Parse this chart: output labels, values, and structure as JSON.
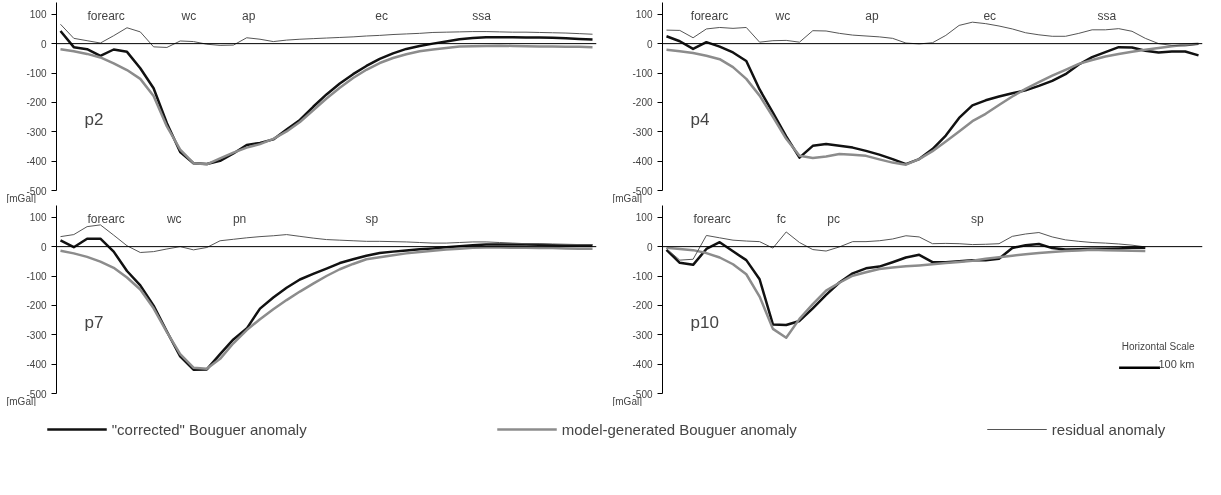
{
  "chart_data": [
    {
      "type": "line",
      "title": "p2",
      "ylabel": "[mGal]",
      "categories": [
        null,
        null,
        null,
        null,
        null,
        null,
        null,
        null,
        null,
        null,
        null,
        null,
        null,
        null,
        null,
        null,
        null,
        null,
        null,
        null,
        null,
        null,
        null,
        null,
        null,
        null,
        null,
        null,
        null,
        null,
        null,
        null,
        null,
        null,
        null,
        null,
        null,
        null,
        null,
        null,
        null
      ],
      "ylim": [
        -500,
        140
      ],
      "yticks": [
        100,
        0,
        -100,
        -200,
        -300,
        -400,
        -500
      ],
      "legend": "bottom",
      "ref_lines": [
        {
          "axis": "y",
          "value": 0,
          "color": "#000000"
        }
      ],
      "annotations": [
        "forearc",
        "wc",
        "ap",
        "ec",
        "ssa"
      ],
      "series": [
        {
          "name": "\"corrected\" Bouguer anomaly",
          "color": "#111111",
          "values": [
            43,
            -12,
            -19,
            -42,
            -20,
            -28,
            -84,
            -152,
            -271,
            -369,
            -407,
            -410,
            -399,
            -374,
            -345,
            -338,
            -326,
            -292,
            -260,
            -215,
            -173,
            -136,
            -104,
            -76,
            -52,
            -33,
            -18,
            -8,
            0,
            7,
            15,
            19,
            22,
            22,
            22,
            21,
            21,
            20,
            18,
            16,
            14
          ]
        },
        {
          "name": "model-generated Bouguer anomaly",
          "color": "#8c8c8c",
          "values": [
            -19,
            -26,
            -35,
            -47,
            -67,
            -90,
            -120,
            -178,
            -282,
            -361,
            -407,
            -411,
            -391,
            -371,
            -354,
            -342,
            -324,
            -299,
            -267,
            -227,
            -187,
            -150,
            -117,
            -89,
            -66,
            -49,
            -36,
            -26,
            -20,
            -15,
            -10,
            -9,
            -8,
            -7,
            -8,
            -9,
            -10,
            -10,
            -11,
            -11,
            -12
          ]
        },
        {
          "name": "residual anomaly",
          "color": "#555555",
          "values": [
            66,
            18,
            10,
            2,
            27,
            54,
            40,
            -11,
            -13,
            9,
            7,
            -2,
            -6,
            -5,
            20,
            15,
            7,
            12,
            15,
            17,
            19,
            21,
            23,
            26,
            28,
            31,
            33,
            35,
            38,
            39,
            40,
            41,
            41,
            40,
            39,
            39,
            38,
            37,
            36,
            34,
            32
          ]
        }
      ]
    },
    {
      "type": "line",
      "title": "p4",
      "ylabel": "[mGal]",
      "categories": [
        null,
        null,
        null,
        null,
        null,
        null,
        null,
        null,
        null,
        null,
        null,
        null,
        null,
        null,
        null,
        null,
        null,
        null,
        null,
        null,
        null,
        null,
        null,
        null,
        null,
        null,
        null,
        null,
        null,
        null,
        null,
        null,
        null,
        null,
        null,
        null,
        null,
        null,
        null,
        null,
        null
      ],
      "ylim": [
        -500,
        140
      ],
      "yticks": [
        100,
        0,
        -100,
        -200,
        -300,
        -400,
        -500
      ],
      "ref_lines": [
        {
          "axis": "y",
          "value": 0,
          "color": "#000000"
        }
      ],
      "annotations": [
        "forearc",
        "wc",
        "ap",
        "ec",
        "ssa"
      ],
      "series": [
        {
          "color": "#111111",
          "values": [
            25,
            8,
            -18,
            5,
            -10,
            -30,
            -59,
            -156,
            -235,
            -316,
            -388,
            -348,
            -342,
            -348,
            -354,
            -365,
            -378,
            -393,
            -410,
            -393,
            -359,
            -313,
            -253,
            -210,
            -193,
            -180,
            -169,
            -159,
            -144,
            -127,
            -104,
            -71,
            -46,
            -29,
            -12,
            -13,
            -24,
            -30,
            -27,
            -27,
            -40
          ]
        },
        {
          "color": "#8c8c8c",
          "values": [
            -21,
            -26,
            -32,
            -41,
            -53,
            -80,
            -120,
            -177,
            -249,
            -324,
            -382,
            -389,
            -384,
            -376,
            -378,
            -382,
            -394,
            -405,
            -412,
            -393,
            -366,
            -333,
            -299,
            -264,
            -239,
            -209,
            -180,
            -154,
            -131,
            -109,
            -89,
            -69,
            -56,
            -44,
            -35,
            -28,
            -21,
            -15,
            -9,
            -4,
            0
          ]
        },
        {
          "color": "#555555",
          "values": [
            46,
            45,
            20,
            50,
            55,
            52,
            55,
            5,
            10,
            11,
            5,
            44,
            43,
            35,
            29,
            26,
            23,
            18,
            2,
            -1,
            3,
            28,
            62,
            73,
            68,
            60,
            50,
            37,
            30,
            25,
            25,
            35,
            47,
            47,
            51,
            42,
            18,
            0,
            -6,
            -8,
            -3
          ]
        }
      ]
    },
    {
      "type": "line",
      "title": "p7",
      "ylabel": "[mGal]",
      "categories": [
        null,
        null,
        null,
        null,
        null,
        null,
        null,
        null,
        null,
        null,
        null,
        null,
        null,
        null,
        null,
        null,
        null,
        null,
        null,
        null,
        null,
        null,
        null,
        null,
        null,
        null,
        null,
        null,
        null,
        null,
        null,
        null,
        null,
        null,
        null,
        null,
        null,
        null,
        null,
        null,
        null
      ],
      "ylim": [
        -500,
        140
      ],
      "yticks": [
        100,
        0,
        -100,
        -200,
        -300,
        -400,
        -500
      ],
      "ref_lines": [
        {
          "axis": "y",
          "value": 0,
          "color": "#000000"
        }
      ],
      "annotations": [
        "forearc",
        "wc",
        "pn",
        "sp"
      ],
      "series": [
        {
          "color": "#111111",
          "values": [
            21,
            -2,
            27,
            27,
            -17,
            -83,
            -132,
            -201,
            -289,
            -374,
            -419,
            -418,
            -366,
            -316,
            -279,
            -211,
            -173,
            -140,
            -112,
            -93,
            -75,
            -56,
            -43,
            -31,
            -22,
            -17,
            -13,
            -9,
            -6,
            -2,
            1,
            5,
            7,
            7,
            7,
            7,
            6,
            5,
            4,
            4,
            4
          ]
        },
        {
          "color": "#8c8c8c",
          "values": [
            -14,
            -23,
            -35,
            -51,
            -72,
            -105,
            -146,
            -210,
            -291,
            -366,
            -412,
            -416,
            -382,
            -329,
            -284,
            -247,
            -213,
            -182,
            -153,
            -126,
            -100,
            -77,
            -59,
            -43,
            -36,
            -29,
            -23,
            -18,
            -14,
            -10,
            -7,
            -4,
            -3,
            -3,
            -4,
            -4,
            -5,
            -5,
            -6,
            -7,
            -7
          ]
        },
        {
          "color": "#555555",
          "values": [
            34,
            41,
            68,
            74,
            39,
            3,
            -20,
            -17,
            -8,
            0,
            -11,
            -3,
            20,
            25,
            30,
            34,
            37,
            41,
            35,
            29,
            24,
            22,
            20,
            18,
            18,
            17,
            16,
            14,
            12,
            12,
            14,
            16,
            16,
            14,
            12,
            10,
            10,
            9,
            8,
            7,
            7
          ]
        }
      ]
    },
    {
      "type": "line",
      "title": "p10",
      "ylabel": "[mGal]",
      "categories": [
        null,
        null,
        null,
        null,
        null,
        null,
        null,
        null,
        null,
        null,
        null,
        null,
        null,
        null,
        null,
        null,
        null,
        null,
        null,
        null,
        null,
        null,
        null,
        null,
        null,
        null,
        null,
        null,
        null,
        null,
        null,
        null,
        null,
        null,
        null,
        null,
        null,
        null,
        null,
        null,
        null
      ],
      "ylim": [
        -500,
        140
      ],
      "yticks": [
        100,
        0,
        -100,
        -200,
        -300,
        -400,
        -500
      ],
      "ref_lines": [
        {
          "axis": "y",
          "value": 0,
          "color": "#000000"
        }
      ],
      "annotations": [
        "forearc",
        "fc",
        "pc",
        "sp",
        "Horizontal Scale",
        "100 km"
      ],
      "series": [
        {
          "color": "#111111",
          "values": [
            -11,
            -55,
            -62,
            -8,
            15,
            -16,
            -46,
            -111,
            -265,
            -267,
            -253,
            -210,
            -164,
            -122,
            -91,
            -74,
            -68,
            -53,
            -37,
            -28,
            -53,
            -53,
            -50,
            -46,
            -46,
            -41,
            -5,
            5,
            9,
            -5,
            -10,
            -9,
            -7,
            -7,
            -6,
            -4,
            -4,
            null,
            null,
            null,
            null
          ]
        },
        {
          "color": "#8c8c8c",
          "values": [
            -4,
            -8,
            -12,
            -22,
            -37,
            -60,
            -94,
            -170,
            -280,
            -310,
            -246,
            -196,
            -150,
            -123,
            -99,
            -87,
            -76,
            -71,
            -67,
            -64,
            -60,
            -56,
            -52,
            -48,
            -41,
            -36,
            -31,
            -26,
            -22,
            -18,
            -15,
            -13,
            -11,
            -12,
            -13,
            -14,
            -15,
            null,
            null,
            null,
            null
          ]
        },
        {
          "color": "#555555",
          "values": [
            -7,
            -46,
            -43,
            38,
            30,
            22,
            19,
            17,
            -5,
            50,
            14,
            -10,
            -15,
            -1,
            17,
            17,
            20,
            26,
            37,
            33,
            10,
            11,
            10,
            7,
            8,
            10,
            35,
            43,
            48,
            33,
            23,
            18,
            14,
            12,
            9,
            5,
            -1,
            null,
            null,
            null,
            null
          ]
        }
      ]
    }
  ]
}
